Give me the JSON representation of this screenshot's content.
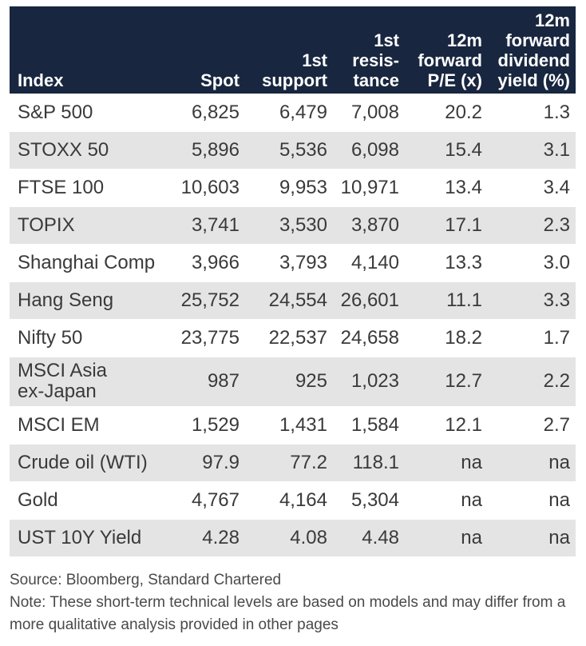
{
  "table": {
    "headers": [
      "Index",
      "Spot",
      "1st\nsupport",
      "1st\nresis-\ntance",
      "12m\nforward\nP/E (x)",
      "12m\nforward\ndividend\nyield (%)"
    ],
    "rows": [
      [
        "S&P 500",
        "6,825",
        "6,479",
        "7,008",
        "20.2",
        "1.3"
      ],
      [
        "STOXX 50",
        "5,896",
        "5,536",
        "6,098",
        "15.4",
        "3.1"
      ],
      [
        "FTSE 100",
        "10,603",
        "9,953",
        "10,971",
        "13.4",
        "3.4"
      ],
      [
        "TOPIX",
        "3,741",
        "3,530",
        "3,870",
        "17.1",
        "2.3"
      ],
      [
        "Shanghai Comp",
        "3,966",
        "3,793",
        "4,140",
        "13.3",
        "3.0"
      ],
      [
        "Hang Seng",
        "25,752",
        "24,554",
        "26,601",
        "11.1",
        "3.3"
      ],
      [
        "Nifty 50",
        "23,775",
        "22,537",
        "24,658",
        "18.2",
        "1.7"
      ],
      [
        "MSCI Asia\nex-Japan",
        "987",
        "925",
        "1,023",
        "12.7",
        "2.2"
      ],
      [
        "MSCI EM",
        "1,529",
        "1,431",
        "1,584",
        "12.1",
        "2.7"
      ],
      [
        "Crude oil (WTI)",
        "97.9",
        "77.2",
        "118.1",
        "na",
        "na"
      ],
      [
        "Gold",
        "4,767",
        "4,164",
        "5,304",
        "na",
        "na"
      ],
      [
        "UST 10Y Yield",
        "4.28",
        "4.08",
        "4.48",
        "na",
        "na"
      ]
    ]
  },
  "source": "Source: Bloomberg, Standard Chartered",
  "note": "Note: These short-term technical levels are based on models and may differ from a more qualitative analysis provided in other pages",
  "colors": {
    "header_bg": "#18263f",
    "header_text": "#ffffff",
    "stripe": "#e4e4e4",
    "text": "#3a3a3a"
  }
}
